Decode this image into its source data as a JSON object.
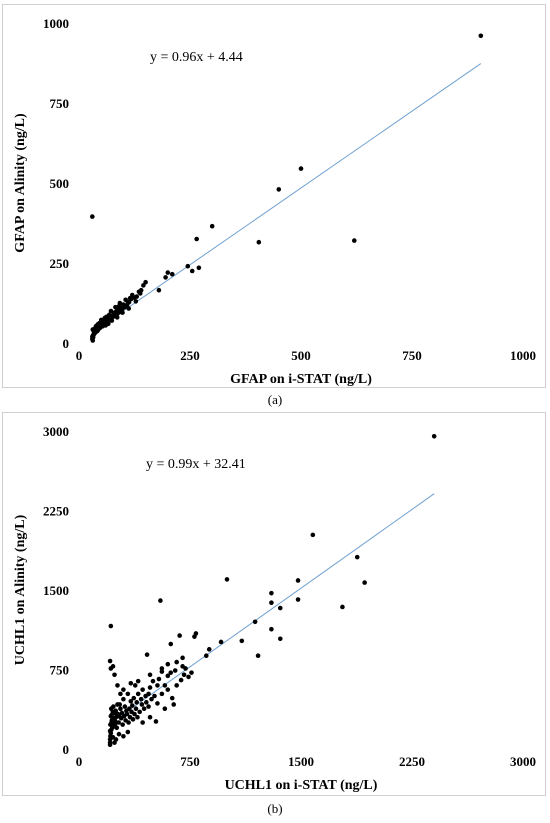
{
  "captions": {
    "a": "(a)",
    "b": "(b)"
  },
  "chart_data": [
    {
      "type": "scatter",
      "panel": "a",
      "xlabel": "GFAP on i-STAT    (ng/L)",
      "ylabel": "GFAP on Alinity    (ng/L)",
      "xlim": [
        0,
        1000
      ],
      "ylim": [
        0,
        1000
      ],
      "xticks": [
        "0",
        "250",
        "500",
        "750",
        "1000"
      ],
      "yticks": [
        "0",
        "250",
        "500",
        "750",
        "1000"
      ],
      "trendline": {
        "equation": "y = 0.96x + 4.44",
        "slope": 0.96,
        "intercept": 4.44,
        "x_range": [
          30,
          905
        ],
        "color": "#6fa0cf"
      },
      "points": [
        [
          905,
          960
        ],
        [
          500,
          545
        ],
        [
          450,
          480
        ],
        [
          300,
          365
        ],
        [
          265,
          325
        ],
        [
          405,
          315
        ],
        [
          620,
          320
        ],
        [
          30,
          395
        ],
        [
          270,
          235
        ],
        [
          255,
          225
        ],
        [
          245,
          240
        ],
        [
          210,
          215
        ],
        [
          200,
          220
        ],
        [
          195,
          205
        ],
        [
          180,
          165
        ],
        [
          150,
          190
        ],
        [
          145,
          180
        ],
        [
          140,
          165
        ],
        [
          135,
          160
        ],
        [
          130,
          145
        ],
        [
          120,
          150
        ],
        [
          115,
          140
        ],
        [
          110,
          125
        ],
        [
          105,
          135
        ],
        [
          100,
          120
        ],
        [
          95,
          110
        ],
        [
          92,
          125
        ],
        [
          90,
          115
        ],
        [
          88,
          105
        ],
        [
          85,
          100
        ],
        [
          82,
          112
        ],
        [
          80,
          95
        ],
        [
          78,
          90
        ],
        [
          75,
          85
        ],
        [
          72,
          100
        ],
        [
          70,
          80
        ],
        [
          68,
          88
        ],
        [
          65,
          75
        ],
        [
          62,
          82
        ],
        [
          60,
          70
        ],
        [
          58,
          78
        ],
        [
          55,
          65
        ],
        [
          52,
          60
        ],
        [
          50,
          72
        ],
        [
          48,
          55
        ],
        [
          46,
          62
        ],
        [
          45,
          50
        ],
        [
          44,
          45
        ],
        [
          42,
          58
        ],
        [
          40,
          48
        ],
        [
          39,
          40
        ],
        [
          38,
          52
        ],
        [
          36,
          35
        ],
        [
          35,
          44
        ],
        [
          34,
          30
        ],
        [
          33,
          38
        ],
        [
          32,
          25
        ],
        [
          31,
          42
        ],
        [
          30,
          20
        ],
        [
          30,
          12
        ],
        [
          31,
          8
        ],
        [
          32,
          18
        ],
        [
          34,
          28
        ],
        [
          37,
          33
        ],
        [
          41,
          37
        ],
        [
          43,
          41
        ],
        [
          47,
          47
        ],
        [
          53,
          52
        ],
        [
          57,
          58
        ],
        [
          63,
          64
        ],
        [
          67,
          68
        ],
        [
          73,
          73
        ],
        [
          77,
          82
        ],
        [
          83,
          87
        ],
        [
          87,
          92
        ],
        [
          93,
          97
        ],
        [
          97,
          104
        ],
        [
          103,
          112
        ],
        [
          108,
          118
        ],
        [
          113,
          128
        ],
        [
          118,
          138
        ],
        [
          125,
          142
        ],
        [
          60,
          55
        ],
        [
          66,
          60
        ],
        [
          74,
          70
        ],
        [
          86,
          80
        ],
        [
          98,
          95
        ],
        [
          112,
          108
        ],
        [
          128,
          130
        ],
        [
          138,
          155
        ]
      ]
    },
    {
      "type": "scatter",
      "panel": "b",
      "xlabel": "UCHL1 on i-STAT    (ng/L)",
      "ylabel": "UCHL1 on Alinity    (ng/L)",
      "xlim": [
        0,
        3000
      ],
      "ylim": [
        0,
        3000
      ],
      "xticks": [
        "0",
        "750",
        "1500",
        "2250",
        "3000"
      ],
      "yticks": [
        "0",
        "750",
        "1500",
        "2250",
        "3000"
      ],
      "trendline": {
        "equation": "y = 0.99x + 32.41",
        "slope": 0.99,
        "intercept": 32.41,
        "x_range": [
          200,
          2400
        ],
        "color": "#6fa0cf"
      },
      "points": [
        [
          2400,
          2950
        ],
        [
          1580,
          2020
        ],
        [
          1880,
          1810
        ],
        [
          1930,
          1570
        ],
        [
          1780,
          1340
        ],
        [
          1480,
          1590
        ],
        [
          1480,
          1410
        ],
        [
          1000,
          1600
        ],
        [
          1300,
          1470
        ],
        [
          1300,
          1380
        ],
        [
          1300,
          1130
        ],
        [
          1360,
          1330
        ],
        [
          1360,
          1040
        ],
        [
          1100,
          1020
        ],
        [
          1190,
          1200
        ],
        [
          1210,
          880
        ],
        [
          960,
          1010
        ],
        [
          880,
          940
        ],
        [
          860,
          880
        ],
        [
          790,
          1090
        ],
        [
          780,
          1060
        ],
        [
          680,
          1070
        ],
        [
          550,
          1400
        ],
        [
          620,
          990
        ],
        [
          700,
          780
        ],
        [
          720,
          760
        ],
        [
          650,
          740
        ],
        [
          620,
          720
        ],
        [
          600,
          690
        ],
        [
          560,
          730
        ],
        [
          540,
          660
        ],
        [
          530,
          600
        ],
        [
          500,
          640
        ],
        [
          480,
          580
        ],
        [
          470,
          520
        ],
        [
          460,
          890
        ],
        [
          450,
          500
        ],
        [
          430,
          560
        ],
        [
          420,
          470
        ],
        [
          400,
          520
        ],
        [
          390,
          440
        ],
        [
          380,
          600
        ],
        [
          370,
          480
        ],
        [
          360,
          410
        ],
        [
          350,
          450
        ],
        [
          340,
          380
        ],
        [
          330,
          520
        ],
        [
          320,
          360
        ],
        [
          310,
          400
        ],
        [
          300,
          470
        ],
        [
          290,
          340
        ],
        [
          280,
          380
        ],
        [
          270,
          310
        ],
        [
          260,
          420
        ],
        [
          250,
          300
        ],
        [
          245,
          260
        ],
        [
          240,
          340
        ],
        [
          235,
          220
        ],
        [
          230,
          280
        ],
        [
          225,
          200
        ],
        [
          220,
          250
        ],
        [
          218,
          180
        ],
        [
          215,
          150
        ],
        [
          212,
          120
        ],
        [
          210,
          90
        ],
        [
          210,
          60
        ],
        [
          210,
          40
        ],
        [
          210,
          170
        ],
        [
          212,
          230
        ],
        [
          215,
          310
        ],
        [
          218,
          380
        ],
        [
          220,
          320
        ],
        [
          222,
          270
        ],
        [
          228,
          350
        ],
        [
          232,
          400
        ],
        [
          238,
          290
        ],
        [
          242,
          230
        ],
        [
          248,
          360
        ],
        [
          255,
          200
        ],
        [
          262,
          330
        ],
        [
          268,
          250
        ],
        [
          275,
          420
        ],
        [
          285,
          290
        ],
        [
          295,
          230
        ],
        [
          305,
          310
        ],
        [
          315,
          270
        ],
        [
          325,
          330
        ],
        [
          335,
          250
        ],
        [
          345,
          300
        ],
        [
          355,
          350
        ],
        [
          365,
          280
        ],
        [
          375,
          330
        ],
        [
          385,
          380
        ],
        [
          395,
          300
        ],
        [
          410,
          350
        ],
        [
          425,
          420
        ],
        [
          440,
          380
        ],
        [
          455,
          440
        ],
        [
          470,
          400
        ],
        [
          490,
          470
        ],
        [
          510,
          500
        ],
        [
          520,
          260
        ],
        [
          530,
          430
        ],
        [
          560,
          520
        ],
        [
          580,
          600
        ],
        [
          600,
          560
        ],
        [
          630,
          480
        ],
        [
          660,
          600
        ],
        [
          690,
          650
        ],
        [
          710,
          700
        ],
        [
          740,
          680
        ],
        [
          760,
          720
        ],
        [
          640,
          420
        ],
        [
          580,
          380
        ],
        [
          480,
          300
        ],
        [
          430,
          250
        ],
        [
          330,
          160
        ],
        [
          300,
          120
        ],
        [
          270,
          140
        ],
        [
          250,
          90
        ],
        [
          240,
          60
        ],
        [
          230,
          110
        ],
        [
          215,
          1160
        ],
        [
          210,
          830
        ],
        [
          215,
          760
        ],
        [
          230,
          780
        ],
        [
          240,
          700
        ],
        [
          260,
          600
        ],
        [
          280,
          520
        ],
        [
          300,
          560
        ],
        [
          350,
          620
        ],
        [
          400,
          640
        ],
        [
          480,
          700
        ],
        [
          560,
          760
        ],
        [
          600,
          800
        ],
        [
          660,
          820
        ],
        [
          700,
          860
        ]
      ]
    }
  ]
}
